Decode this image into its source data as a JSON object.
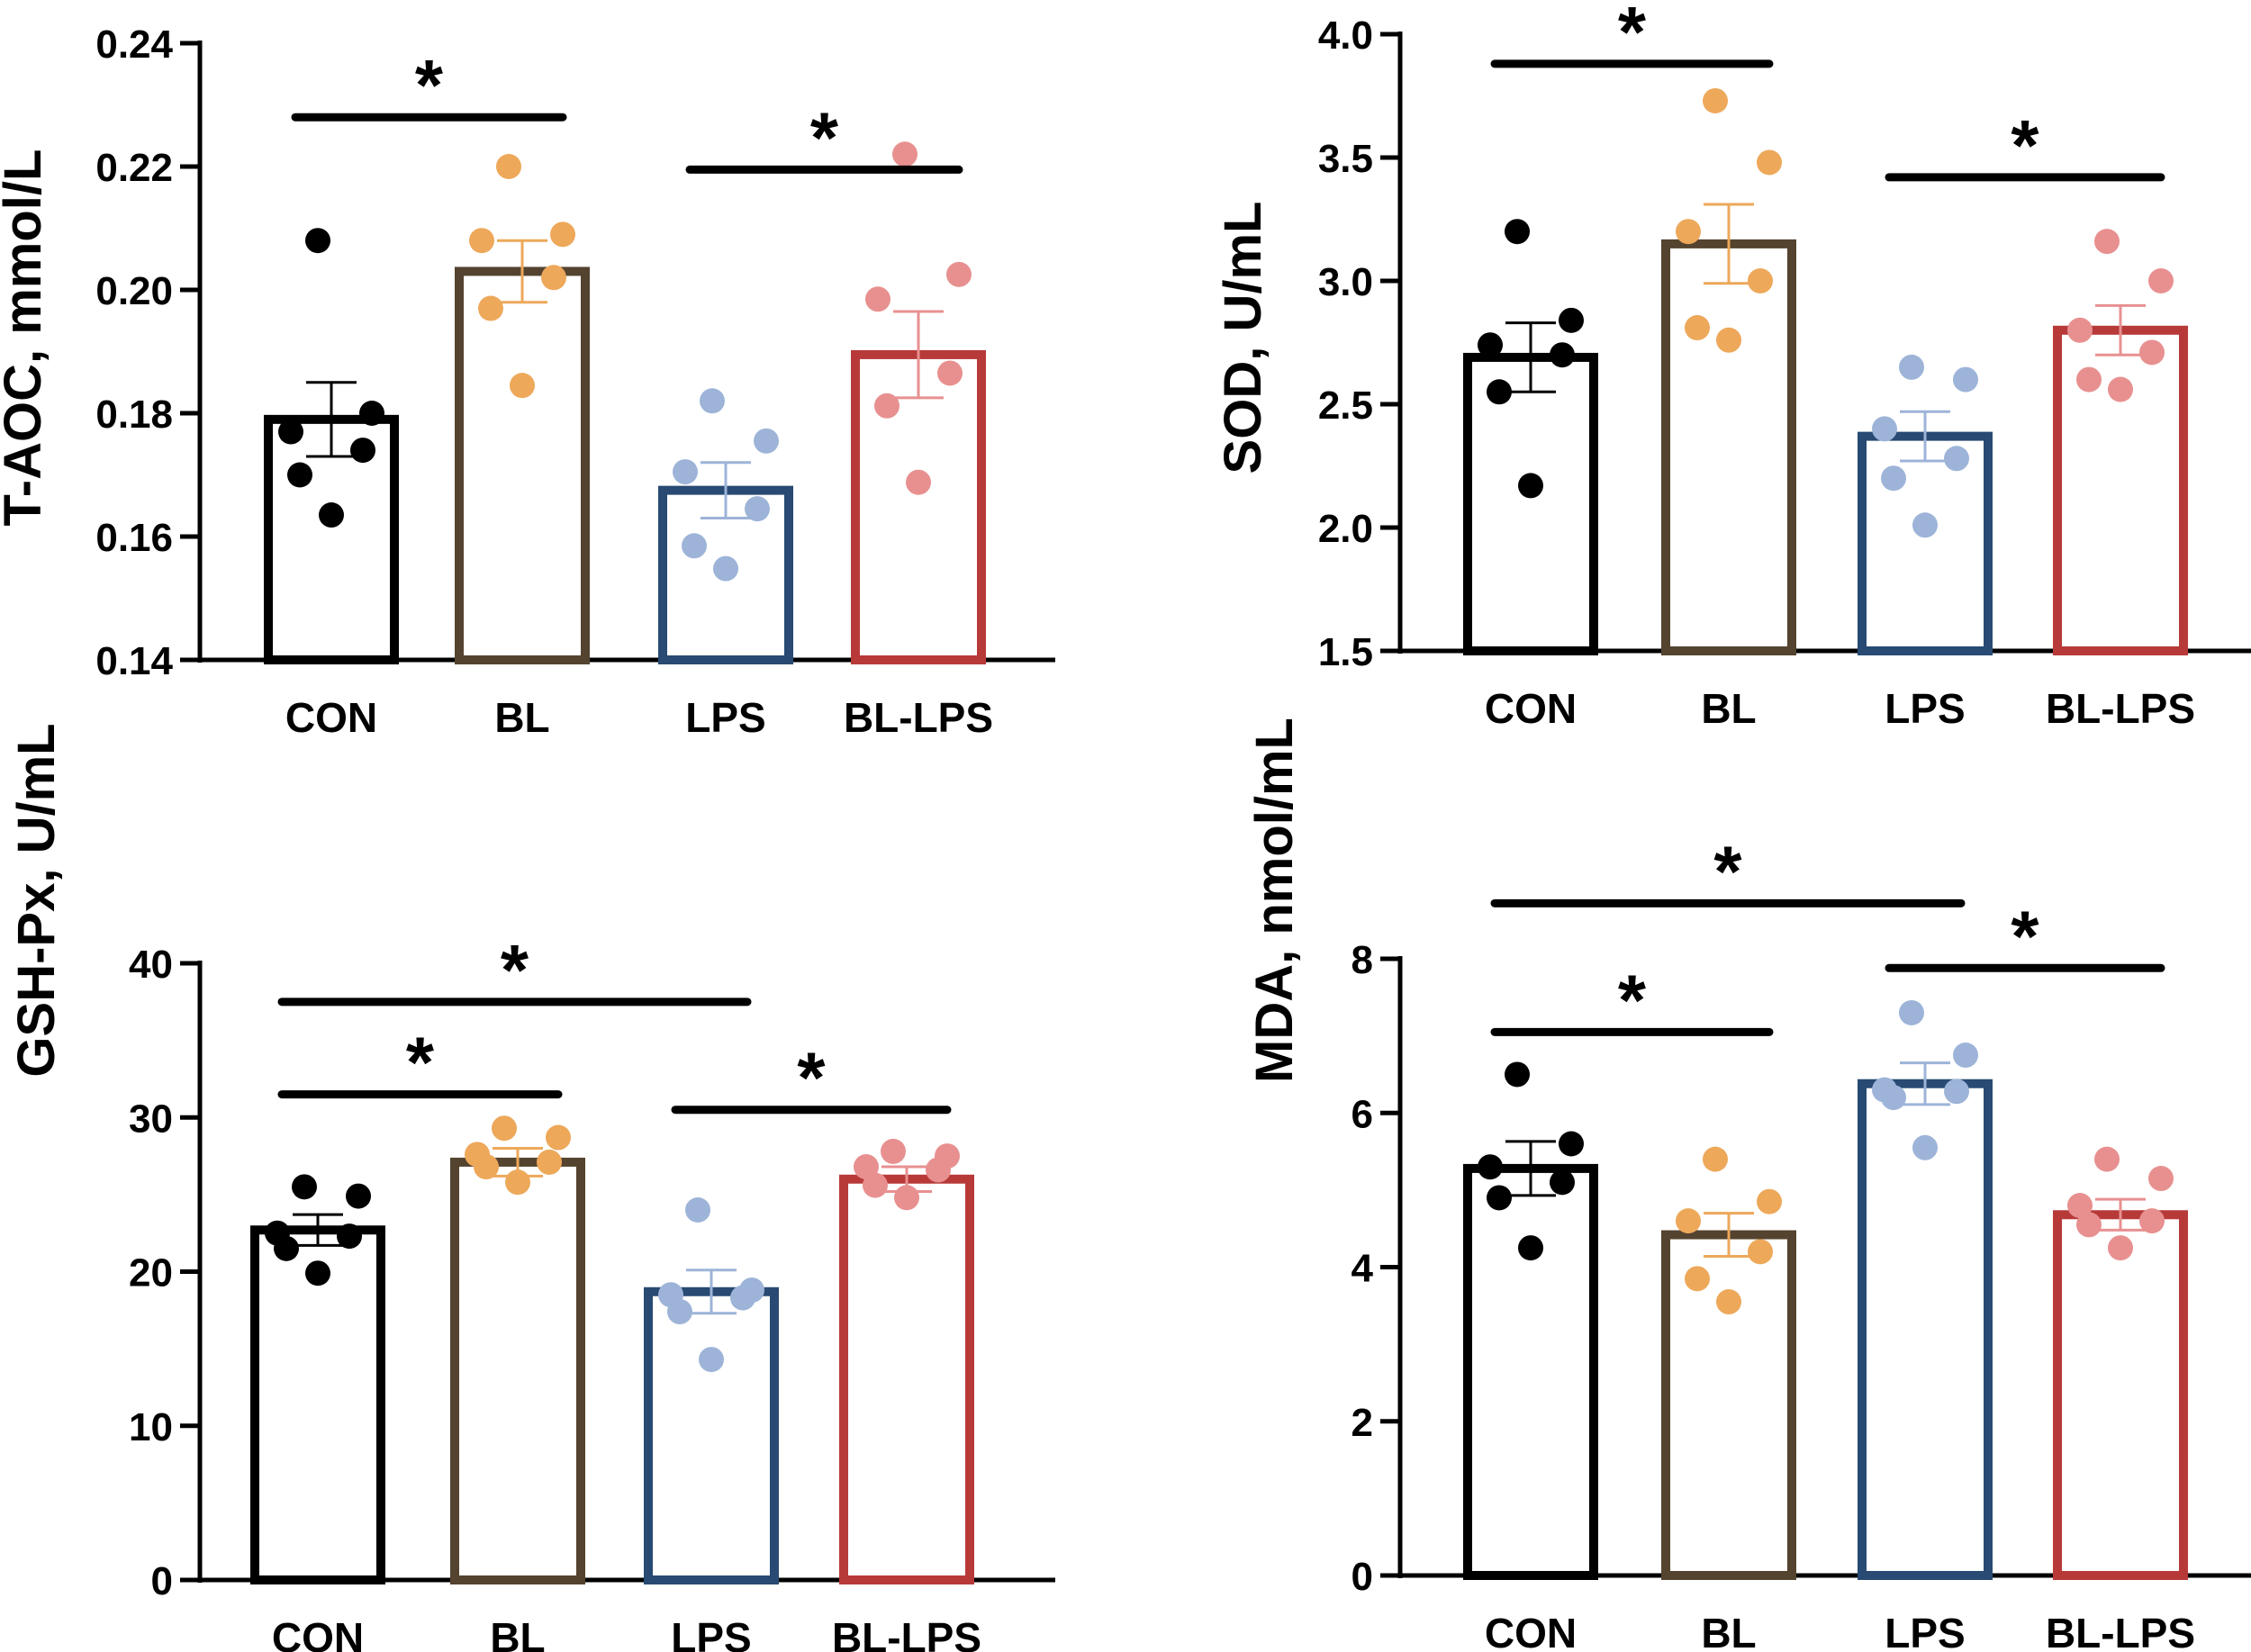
{
  "chart_data": [
    {
      "type": "bar",
      "id": "tAOC",
      "ylabel": "T-AOC, mmol/L",
      "ylim": [
        0.14,
        0.24
      ],
      "yticks": [
        0.14,
        0.16,
        0.18,
        0.2,
        0.22,
        0.24
      ],
      "ytick_labels": [
        "0.14",
        "0.16",
        "0.18",
        "0.20",
        "0.22",
        "0.24"
      ],
      "categories": [
        "CON",
        "BL",
        "LPS",
        "BL-LPS"
      ],
      "colors": [
        "#000000",
        "#54432f",
        "#284a73",
        "#b73a39"
      ],
      "point_colors": [
        "#000000",
        "#eda85a",
        "#9db4d8",
        "#e89090"
      ],
      "values": [
        0.179,
        0.203,
        0.1675,
        0.1895
      ],
      "sem": [
        0.006,
        0.005,
        0.0045,
        0.007
      ],
      "points": [
        [
          0.208,
          0.18,
          0.177,
          0.174,
          0.17,
          0.1635
        ],
        [
          0.22,
          0.209,
          0.208,
          0.202,
          0.197,
          0.1845
        ],
        [
          0.182,
          0.1755,
          0.1705,
          0.1645,
          0.1585,
          0.1548
        ],
        [
          0.222,
          0.2025,
          0.1985,
          0.1865,
          0.1812,
          0.1688
        ]
      ],
      "significance": [
        {
          "from": 0,
          "to": 1,
          "y": 0.228,
          "label": "*"
        },
        {
          "from": 2,
          "to": 3,
          "y": 0.2195,
          "label": "*"
        }
      ]
    },
    {
      "type": "bar",
      "id": "SOD",
      "ylabel": "SOD, U/mL",
      "ylim": [
        1.5,
        4.0
      ],
      "yticks": [
        1.5,
        2.0,
        2.5,
        3.0,
        3.5,
        4.0
      ],
      "ytick_labels": [
        "1.5",
        "2.0",
        "2.5",
        "3.0",
        "3.5",
        "4.0"
      ],
      "categories": [
        "CON",
        "BL",
        "LPS",
        "BL-LPS"
      ],
      "colors": [
        "#000000",
        "#54432f",
        "#284a73",
        "#b73a39"
      ],
      "point_colors": [
        "#000000",
        "#eda85a",
        "#9db4d8",
        "#e89090"
      ],
      "values": [
        2.69,
        3.15,
        2.37,
        2.8
      ],
      "sem": [
        0.14,
        0.16,
        0.1,
        0.1
      ],
      "points": [
        [
          3.2,
          2.84,
          2.74,
          2.7,
          2.55,
          2.17
        ],
        [
          3.73,
          3.48,
          3.2,
          3.0,
          2.81,
          2.76
        ],
        [
          2.65,
          2.6,
          2.4,
          2.28,
          2.2,
          2.01
        ],
        [
          3.16,
          3.0,
          2.8,
          2.71,
          2.6,
          2.56
        ]
      ],
      "significance": [
        {
          "from": 0,
          "to": 1,
          "y": 3.88,
          "label": "*"
        },
        {
          "from": 2,
          "to": 3,
          "y": 3.42,
          "label": "*"
        }
      ]
    },
    {
      "type": "bar",
      "id": "GSHPx",
      "ylabel": "GSH-Px, U/mL",
      "ylim": [
        0,
        40
      ],
      "yticks": [
        0,
        10,
        20,
        30,
        40
      ],
      "ytick_labels": [
        "0",
        "10",
        "20",
        "30",
        "40"
      ],
      "categories": [
        "CON",
        "BL",
        "LPS",
        "BL-LPS"
      ],
      "colors": [
        "#000000",
        "#54432f",
        "#284a73",
        "#b73a39"
      ],
      "point_colors": [
        "#000000",
        "#eda85a",
        "#9db4d8",
        "#e89090"
      ],
      "values": [
        22.7,
        27.1,
        18.7,
        26.0
      ],
      "sem": [
        1.0,
        0.9,
        1.4,
        0.8
      ],
      "points": [
        [
          25.5,
          24.9,
          22.5,
          22.3,
          21.5,
          19.9
        ],
        [
          29.3,
          28.7,
          27.6,
          27.1,
          26.8,
          25.8
        ],
        [
          24.0,
          18.8,
          18.5,
          18.3,
          17.4,
          14.3
        ],
        [
          27.8,
          27.5,
          26.8,
          26.6,
          25.6,
          24.8
        ]
      ],
      "significance": [
        {
          "from": 0,
          "to": 2,
          "y": 37.5,
          "label": "*"
        },
        {
          "from": 0,
          "to": 1,
          "y": 31.5,
          "label": "*"
        },
        {
          "from": 2,
          "to": 3,
          "y": 30.5,
          "label": "*"
        }
      ]
    },
    {
      "type": "bar",
      "id": "MDA",
      "ylabel": "MDA, nmol/mL",
      "ylim": [
        0,
        8
      ],
      "yticks": [
        0,
        2,
        4,
        6,
        8
      ],
      "ytick_labels": [
        "0",
        "2",
        "4",
        "6",
        "8"
      ],
      "categories": [
        "CON",
        "BL",
        "LPS",
        "BL-LPS"
      ],
      "colors": [
        "#000000",
        "#54432f",
        "#284a73",
        "#b73a39"
      ],
      "point_colors": [
        "#000000",
        "#eda85a",
        "#9db4d8",
        "#e89090"
      ],
      "values": [
        5.28,
        4.42,
        6.38,
        4.68
      ],
      "sem": [
        0.35,
        0.28,
        0.27,
        0.2
      ],
      "points": [
        [
          6.5,
          5.6,
          5.3,
          5.1,
          4.9,
          4.25
        ],
        [
          5.4,
          4.85,
          4.6,
          4.2,
          3.85,
          3.55
        ],
        [
          7.3,
          6.75,
          6.3,
          6.28,
          6.2,
          5.55
        ],
        [
          5.4,
          5.15,
          4.8,
          4.6,
          4.55,
          4.25
        ]
      ],
      "significance": [
        {
          "from": 0,
          "to": 2,
          "y": 8.72,
          "label": "*"
        },
        {
          "from": 2,
          "to": 3,
          "y": 7.88,
          "label": "*"
        },
        {
          "from": 0,
          "to": 1,
          "y": 7.05,
          "label": "*"
        }
      ]
    }
  ]
}
